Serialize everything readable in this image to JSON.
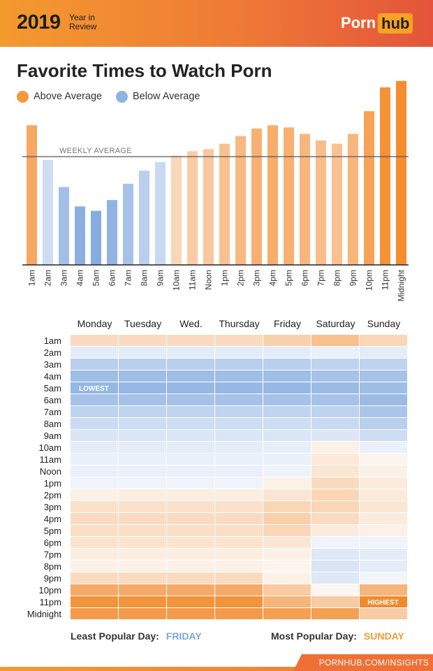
{
  "header": {
    "year": "2019",
    "year_in_review": "Year in Review",
    "logo_left": "Porn",
    "logo_right": "hub"
  },
  "title": "Favorite Times to Watch Porn",
  "legend": {
    "above_label": "Above Average",
    "below_label": "Below Average",
    "above_color": "#f49a3a",
    "below_color": "#8fb3e0"
  },
  "chart_data": [
    {
      "type": "bar",
      "categories": [
        "1am",
        "2am",
        "3am",
        "4am",
        "5am",
        "6am",
        "7am",
        "8am",
        "9am",
        "10am",
        "11am",
        "Noon",
        "1pm",
        "2pm",
        "3pm",
        "4pm",
        "5pm",
        "6pm",
        "7pm",
        "8pm",
        "9pm",
        "10pm",
        "11pm",
        "Midnight"
      ],
      "values": [
        129,
        97,
        72,
        54,
        50,
        60,
        75,
        87,
        95,
        101,
        105,
        107,
        112,
        119,
        126,
        129,
        127,
        121,
        115,
        112,
        121,
        142,
        164,
        170
      ],
      "average": 100,
      "average_label": "WEEKLY AVERAGE",
      "ylim": [
        0,
        175
      ],
      "legend_position": "top-left",
      "grid": false
    },
    {
      "type": "heatmap",
      "columns": [
        "Monday",
        "Tuesday",
        "Wed.",
        "Thursday",
        "Friday",
        "Saturday",
        "Sunday"
      ],
      "rows": [
        "1am",
        "2am",
        "3am",
        "4am",
        "5am",
        "6am",
        "7am",
        "8am",
        "9am",
        "10am",
        "11am",
        "Noon",
        "1pm",
        "2pm",
        "3pm",
        "4pm",
        "5pm",
        "6pm",
        "7pm",
        "8pm",
        "9pm",
        "10pm",
        "11pm",
        "Midnight"
      ],
      "values": [
        [
          0.25,
          0.25,
          0.25,
          0.25,
          0.35,
          0.5,
          0.3
        ],
        [
          -0.15,
          -0.15,
          -0.15,
          -0.15,
          -0.15,
          -0.1,
          -0.15
        ],
        [
          -0.55,
          -0.55,
          -0.55,
          -0.55,
          -0.55,
          -0.5,
          -0.5
        ],
        [
          -0.78,
          -0.78,
          -0.78,
          -0.78,
          -0.78,
          -0.72,
          -0.72
        ],
        [
          -0.88,
          -0.86,
          -0.86,
          -0.86,
          -0.86,
          -0.82,
          -0.78
        ],
        [
          -0.72,
          -0.72,
          -0.72,
          -0.72,
          -0.72,
          -0.72,
          -0.82
        ],
        [
          -0.5,
          -0.48,
          -0.48,
          -0.48,
          -0.48,
          -0.5,
          -0.68
        ],
        [
          -0.38,
          -0.36,
          -0.36,
          -0.36,
          -0.36,
          -0.4,
          -0.55
        ],
        [
          -0.25,
          -0.24,
          -0.24,
          -0.24,
          -0.24,
          -0.22,
          -0.35
        ],
        [
          -0.15,
          -0.15,
          -0.15,
          -0.15,
          -0.12,
          0.05,
          -0.08
        ],
        [
          -0.1,
          -0.1,
          -0.1,
          -0.1,
          -0.08,
          0.12,
          0.02
        ],
        [
          -0.1,
          -0.1,
          -0.1,
          -0.1,
          -0.05,
          0.15,
          0.05
        ],
        [
          -0.05,
          -0.05,
          -0.05,
          -0.05,
          0.05,
          0.25,
          0.1
        ],
        [
          0.05,
          0.08,
          0.08,
          0.08,
          0.15,
          0.3,
          0.12
        ],
        [
          0.2,
          0.2,
          0.2,
          0.2,
          0.3,
          0.3,
          0.15
        ],
        [
          0.25,
          0.25,
          0.25,
          0.25,
          0.35,
          0.25,
          0.1
        ],
        [
          0.22,
          0.22,
          0.22,
          0.22,
          0.3,
          0.1,
          0.05
        ],
        [
          0.18,
          0.18,
          0.18,
          0.18,
          0.15,
          -0.05,
          -0.05
        ],
        [
          0.08,
          0.08,
          0.08,
          0.08,
          0.05,
          -0.2,
          -0.15
        ],
        [
          0.05,
          0.05,
          0.05,
          0.05,
          0.02,
          -0.25,
          -0.15
        ],
        [
          0.25,
          0.25,
          0.25,
          0.25,
          0.05,
          -0.2,
          -0.02
        ],
        [
          0.7,
          0.7,
          0.7,
          0.7,
          0.4,
          0.0,
          0.6
        ],
        [
          0.92,
          0.92,
          0.92,
          0.92,
          0.6,
          0.4,
          1.0
        ],
        [
          0.85,
          0.85,
          0.85,
          0.85,
          0.8,
          0.8,
          0.4
        ]
      ],
      "lowest_label": "LOWEST",
      "lowest_cell": {
        "row": "5am",
        "column": "Monday"
      },
      "highest_label": "HIGHEST",
      "highest_cell": {
        "row": "11pm",
        "column": "Sunday"
      }
    }
  ],
  "footer": {
    "least_label": "Least Popular Day:",
    "least_value": "FRIDAY",
    "most_label": "Most Popular Day:",
    "most_value": "SUNDAY",
    "site": "PORNHUB.COM/INSIGHTS"
  }
}
